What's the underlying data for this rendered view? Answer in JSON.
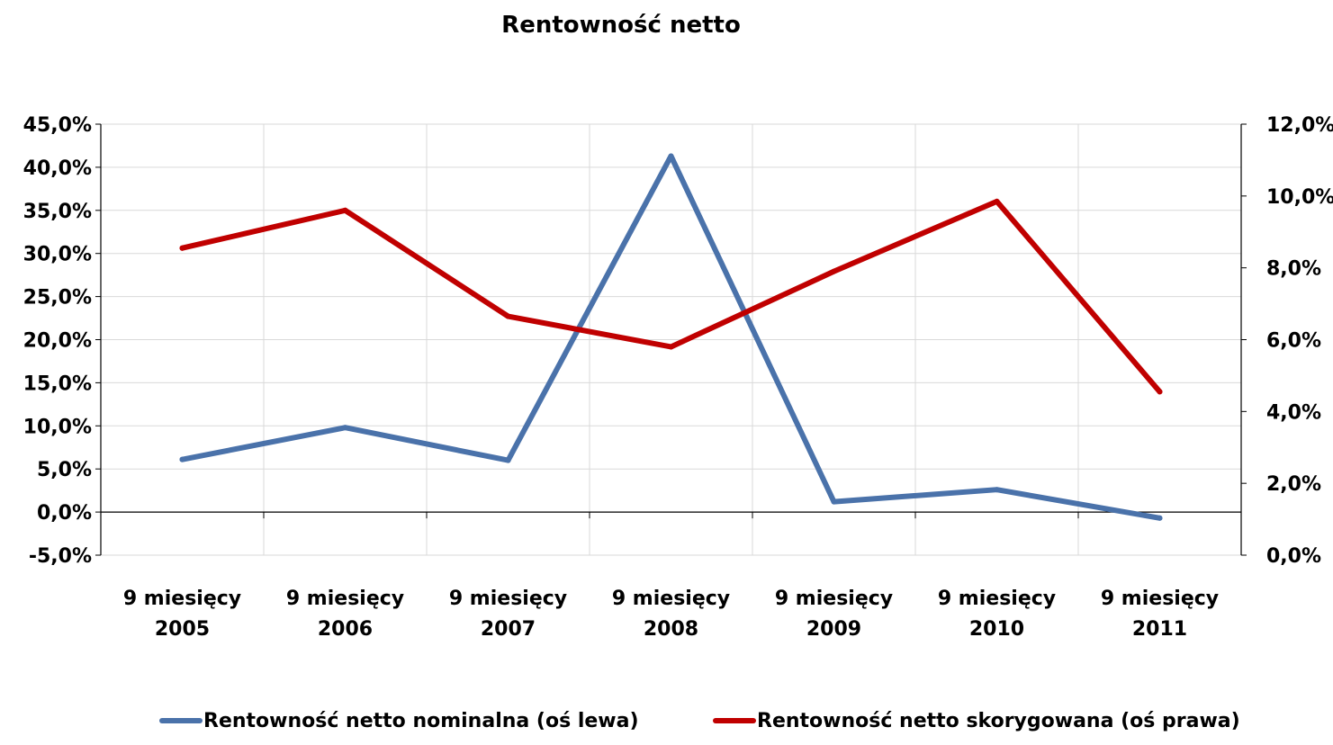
{
  "chart_data": {
    "type": "line",
    "title": "Rentowność netto",
    "categories": [
      [
        "9 miesięcy",
        "2005"
      ],
      [
        "9 miesięcy",
        "2006"
      ],
      [
        "9 miesięcy",
        "2007"
      ],
      [
        "9 miesięcy",
        "2008"
      ],
      [
        "9 miesięcy",
        "2009"
      ],
      [
        "9 miesięcy",
        "2010"
      ],
      [
        "9 miesięcy",
        "2011"
      ]
    ],
    "y_left": {
      "min": -5,
      "max": 45,
      "step": 5,
      "tick_labels": [
        "-5,0%",
        "0,0%",
        "5,0%",
        "10,0%",
        "15,0%",
        "20,0%",
        "25,0%",
        "30,0%",
        "35,0%",
        "40,0%",
        "45,0%"
      ]
    },
    "y_right": {
      "min": 0,
      "max": 12,
      "step": 2,
      "tick_labels": [
        "0,0%",
        "2,0%",
        "4,0%",
        "6,0%",
        "8,0%",
        "10,0%",
        "12,0%"
      ]
    },
    "grid": true,
    "legend_position": "bottom",
    "series": [
      {
        "name": "Rentowność netto nominalna (oś lewa)",
        "axis": "left",
        "color": "#4a72aa",
        "values": [
          6.1,
          9.8,
          6.0,
          41.3,
          1.2,
          2.6,
          -0.7
        ]
      },
      {
        "name": "Rentowność netto skorygowana (oś prawa)",
        "axis": "right",
        "color": "#c00000",
        "values": [
          8.55,
          9.6,
          6.65,
          5.8,
          7.9,
          9.85,
          4.55
        ]
      }
    ]
  }
}
